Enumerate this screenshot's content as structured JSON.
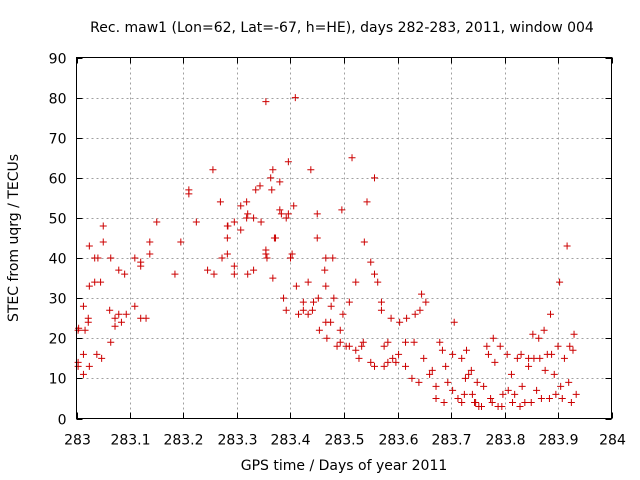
{
  "chart_data": {
    "type": "scatter",
    "title": "Rec. maw1 (Lon=62, Lat=-67, h=HE), days 282-283, 2011, window 004",
    "xlabel": "GPS time / Days of year 2011",
    "ylabel": "STEC from uqrg / TECUs",
    "xlim": [
      283,
      284
    ],
    "ylim": [
      0,
      90
    ],
    "xticks": [
      283,
      283.1,
      283.2,
      283.3,
      283.4,
      283.5,
      283.6,
      283.7,
      283.8,
      283.9,
      284
    ],
    "xtick_labels": [
      "283",
      "283.1",
      "283.2",
      "283.3",
      "283.4",
      "283.5",
      "283.6",
      "283.7",
      "283.8",
      "283.9",
      "284"
    ],
    "yticks": [
      0,
      10,
      20,
      30,
      40,
      50,
      60,
      70,
      80,
      90
    ],
    "ytick_labels": [
      "0",
      "10",
      "20",
      "30",
      "40",
      "50",
      "60",
      "70",
      "80",
      "90"
    ],
    "grid": true,
    "marker": "plus",
    "color": "#cc0000",
    "series": [
      {
        "name": "STEC",
        "points": [
          [
            283.003,
            14
          ],
          [
            283.003,
            13
          ],
          [
            283.003,
            22
          ],
          [
            283.004,
            22.5
          ],
          [
            283.013,
            16
          ],
          [
            283.013,
            11
          ],
          [
            283.013,
            28
          ],
          [
            283.016,
            22
          ],
          [
            283.022,
            25
          ],
          [
            283.022,
            24
          ],
          [
            283.024,
            13
          ],
          [
            283.024,
            33
          ],
          [
            283.024,
            43
          ],
          [
            283.034,
            34
          ],
          [
            283.034,
            40
          ],
          [
            283.038,
            16
          ],
          [
            283.04,
            40
          ],
          [
            283.045,
            34
          ],
          [
            283.047,
            15
          ],
          [
            283.05,
            48
          ],
          [
            283.05,
            44
          ],
          [
            283.062,
            27
          ],
          [
            283.064,
            40
          ],
          [
            283.064,
            19
          ],
          [
            283.072,
            23
          ],
          [
            283.072,
            25
          ],
          [
            283.079,
            26
          ],
          [
            283.079,
            37
          ],
          [
            283.084,
            24
          ],
          [
            283.09,
            36
          ],
          [
            283.093,
            26
          ],
          [
            283.109,
            28
          ],
          [
            283.109,
            40
          ],
          [
            283.12,
            39
          ],
          [
            283.12,
            25
          ],
          [
            283.12,
            38
          ],
          [
            283.13,
            25
          ],
          [
            283.137,
            44
          ],
          [
            283.137,
            41
          ],
          [
            283.15,
            49
          ],
          [
            283.184,
            36
          ],
          [
            283.195,
            44
          ],
          [
            283.21,
            57
          ],
          [
            283.21,
            56
          ],
          [
            283.224,
            49
          ],
          [
            283.245,
            37
          ],
          [
            283.257,
            36
          ],
          [
            283.255,
            62
          ],
          [
            283.269,
            54
          ],
          [
            283.272,
            40
          ],
          [
            283.282,
            48
          ],
          [
            283.282,
            45
          ],
          [
            283.282,
            41
          ],
          [
            283.283,
            48
          ],
          [
            283.295,
            49
          ],
          [
            283.295,
            38
          ],
          [
            283.295,
            36
          ],
          [
            283.307,
            53
          ],
          [
            283.307,
            47
          ],
          [
            283.318,
            54
          ],
          [
            283.318,
            50
          ],
          [
            283.32,
            36
          ],
          [
            283.32,
            51
          ],
          [
            283.331,
            50
          ],
          [
            283.331,
            37
          ],
          [
            283.335,
            57
          ],
          [
            283.343,
            58
          ],
          [
            283.345,
            49
          ],
          [
            283.354,
            79
          ],
          [
            283.354,
            42
          ],
          [
            283.354,
            41
          ],
          [
            283.356,
            40
          ],
          [
            283.363,
            60
          ],
          [
            283.365,
            57
          ],
          [
            283.367,
            62
          ],
          [
            283.367,
            35
          ],
          [
            283.37,
            45
          ],
          [
            283.372,
            45
          ],
          [
            283.38,
            59
          ],
          [
            283.38,
            52
          ],
          [
            283.383,
            51
          ],
          [
            283.387,
            30
          ],
          [
            283.392,
            50
          ],
          [
            283.392,
            27
          ],
          [
            283.396,
            51
          ],
          [
            283.396,
            64
          ],
          [
            283.4,
            40
          ],
          [
            283.403,
            41
          ],
          [
            283.406,
            53
          ],
          [
            283.409,
            80
          ],
          [
            283.411,
            33
          ],
          [
            283.415,
            26
          ],
          [
            283.424,
            27
          ],
          [
            283.424,
            29
          ],
          [
            283.433,
            34
          ],
          [
            283.433,
            26
          ],
          [
            283.438,
            62
          ],
          [
            283.441,
            27
          ],
          [
            283.443,
            29
          ],
          [
            283.45,
            45
          ],
          [
            283.45,
            51
          ],
          [
            283.452,
            30
          ],
          [
            283.454,
            22
          ],
          [
            283.464,
            37
          ],
          [
            283.466,
            40
          ],
          [
            283.466,
            33
          ],
          [
            283.466,
            24
          ],
          [
            283.468,
            20
          ],
          [
            283.475,
            24
          ],
          [
            283.476,
            28
          ],
          [
            283.479,
            40
          ],
          [
            283.481,
            30
          ],
          [
            283.487,
            18
          ],
          [
            283.493,
            19
          ],
          [
            283.493,
            22
          ],
          [
            283.496,
            52
          ],
          [
            283.498,
            26
          ],
          [
            283.504,
            18
          ],
          [
            283.51,
            18
          ],
          [
            283.51,
            29
          ],
          [
            283.515,
            65
          ],
          [
            283.522,
            17
          ],
          [
            283.522,
            34
          ],
          [
            283.528,
            15
          ],
          [
            283.533,
            18
          ],
          [
            283.536,
            19
          ],
          [
            283.538,
            44
          ],
          [
            283.543,
            54
          ],
          [
            283.55,
            14
          ],
          [
            283.55,
            39
          ],
          [
            283.557,
            60
          ],
          [
            283.557,
            36
          ],
          [
            283.557,
            13
          ],
          [
            283.563,
            34
          ],
          [
            283.57,
            29
          ],
          [
            283.57,
            27
          ],
          [
            283.575,
            13
          ],
          [
            283.575,
            18
          ],
          [
            283.582,
            19
          ],
          [
            283.582,
            14
          ],
          [
            283.588,
            25
          ],
          [
            283.591,
            15
          ],
          [
            283.597,
            14
          ],
          [
            283.602,
            16
          ],
          [
            283.604,
            24
          ],
          [
            283.615,
            13
          ],
          [
            283.615,
            19
          ],
          [
            283.617,
            25
          ],
          [
            283.627,
            10
          ],
          [
            283.631,
            19
          ],
          [
            283.633,
            26
          ],
          [
            283.64,
            9
          ],
          [
            283.642,
            27
          ],
          [
            283.645,
            31
          ],
          [
            283.649,
            15
          ],
          [
            283.653,
            29
          ],
          [
            283.66,
            11
          ],
          [
            283.665,
            12
          ],
          [
            283.672,
            5
          ],
          [
            283.672,
            8
          ],
          [
            283.679,
            19
          ],
          [
            283.684,
            17
          ],
          [
            283.687,
            4
          ],
          [
            283.69,
            13
          ],
          [
            283.694,
            9
          ],
          [
            283.703,
            7
          ],
          [
            283.703,
            16
          ],
          [
            283.706,
            24
          ],
          [
            283.713,
            5
          ],
          [
            283.72,
            4
          ],
          [
            283.72,
            15
          ],
          [
            283.725,
            6
          ],
          [
            283.727,
            10
          ],
          [
            283.729,
            17
          ],
          [
            283.733,
            11
          ],
          [
            283.738,
            12
          ],
          [
            283.74,
            6
          ],
          [
            283.744,
            4
          ],
          [
            283.746,
            4
          ],
          [
            283.749,
            9
          ],
          [
            283.752,
            3
          ],
          [
            283.757,
            3
          ],
          [
            283.761,
            8
          ],
          [
            283.767,
            18
          ],
          [
            283.77,
            16
          ],
          [
            283.774,
            5
          ],
          [
            283.777,
            4
          ],
          [
            283.779,
            20
          ],
          [
            283.782,
            14
          ],
          [
            283.788,
            3
          ],
          [
            283.792,
            18
          ],
          [
            283.795,
            3
          ],
          [
            283.797,
            6
          ],
          [
            283.805,
            16
          ],
          [
            283.807,
            7
          ],
          [
            283.813,
            11
          ],
          [
            283.815,
            4
          ],
          [
            283.819,
            6
          ],
          [
            283.824,
            15
          ],
          [
            283.829,
            3
          ],
          [
            283.831,
            16
          ],
          [
            283.833,
            8
          ],
          [
            283.838,
            4
          ],
          [
            283.845,
            13
          ],
          [
            283.845,
            15
          ],
          [
            283.85,
            4
          ],
          [
            283.853,
            21
          ],
          [
            283.855,
            15
          ],
          [
            283.86,
            7
          ],
          [
            283.864,
            20
          ],
          [
            283.866,
            15
          ],
          [
            283.869,
            5
          ],
          [
            283.874,
            22
          ],
          [
            283.876,
            12
          ],
          [
            283.88,
            16
          ],
          [
            283.884,
            5
          ],
          [
            283.886,
            26
          ],
          [
            283.888,
            16
          ],
          [
            283.893,
            11
          ],
          [
            283.896,
            6
          ],
          [
            283.9,
            18
          ],
          [
            283.903,
            34
          ],
          [
            283.905,
            8
          ],
          [
            283.908,
            5
          ],
          [
            283.912,
            15
          ],
          [
            283.917,
            43
          ],
          [
            283.92,
            9
          ],
          [
            283.922,
            18
          ],
          [
            283.925,
            4
          ],
          [
            283.928,
            17
          ],
          [
            283.93,
            21
          ],
          [
            283.934,
            6
          ]
        ]
      }
    ]
  }
}
